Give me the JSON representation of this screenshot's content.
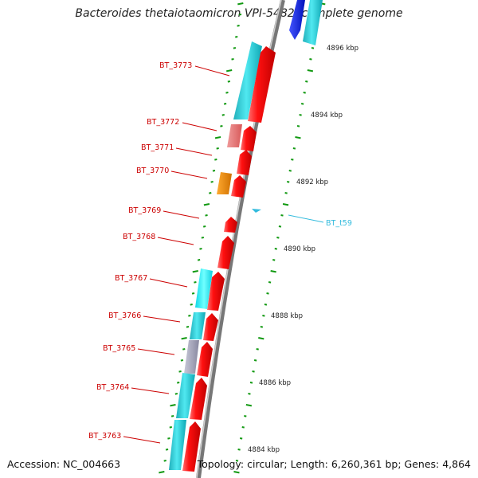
{
  "title": "Bacteroides thetaiotaomicron VPI-5482, complete genome",
  "footer": {
    "accession": "Accession: NC_004663",
    "summary": "Topology: circular; Length: 6,260,361 bp; Genes: 4,864"
  },
  "colors": {
    "forward_cds": "#ee0000",
    "reverse_cds": "#11b8c4",
    "light_red": "#e87878",
    "orange": "#ee8800",
    "grey": "#9a9aaa",
    "blue": "#1122dd",
    "backbone": "#888888",
    "tick_green": "#119911",
    "label_red": "#cc0000",
    "trna_cyan": "#33bbdd"
  },
  "kbp_labels": [
    "4896 kbp",
    "4894 kbp",
    "4892 kbp",
    "4890 kbp",
    "4888 kbp",
    "4886 kbp",
    "4884 kbp"
  ],
  "gene_labels": [
    "BT_3773",
    "BT_3772",
    "BT_3771",
    "BT_3770",
    "BT_3769",
    "BT_3768",
    "BT_3767",
    "BT_3766",
    "BT_3765",
    "BT_3764",
    "BT_3763"
  ],
  "trna_label": "BT_t59"
}
